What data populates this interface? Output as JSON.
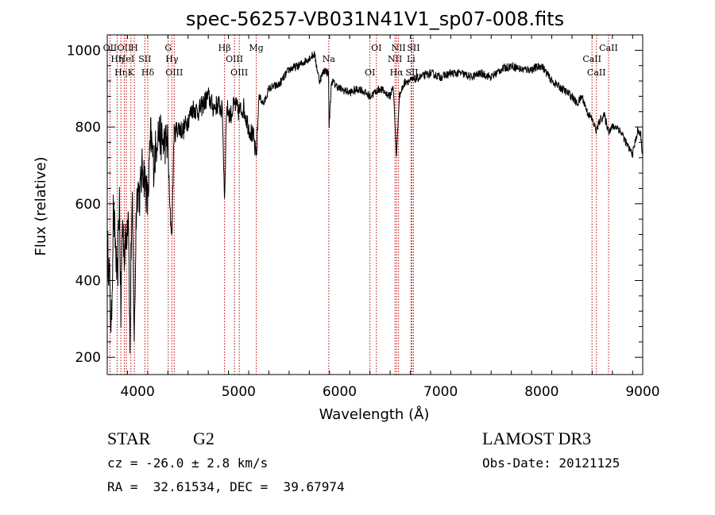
{
  "chart_data": {
    "type": "line",
    "title": "spec-56257-VB031N41V1_sp07-008.fits",
    "xlabel": "Wavelength (Å)",
    "ylabel": "Flux (relative)",
    "xlim": [
      3700,
      9000
    ],
    "ylim": [
      155,
      1040
    ],
    "xticks": [
      4000,
      5000,
      6000,
      7000,
      8000,
      9000
    ],
    "xtick_labels": [
      "4000",
      "5000",
      "6000",
      "7000",
      "8000",
      "9000"
    ],
    "yticks": [
      200,
      400,
      600,
      800,
      1000
    ],
    "ytick_labels": [
      "200",
      "400",
      "600",
      "800",
      "1000"
    ],
    "grid": false,
    "series": [
      {
        "color": "#000000",
        "x": [
          3700,
          3720,
          3740,
          3760,
          3780,
          3800,
          3820,
          3835,
          3850,
          3870,
          3890,
          3910,
          3925,
          3935,
          3950,
          3968,
          3985,
          4000,
          4020,
          4050,
          4080,
          4101,
          4130,
          4160,
          4200,
          4250,
          4300,
          4320,
          4340,
          4360,
          4400,
          4450,
          4500,
          4550,
          4600,
          4650,
          4700,
          4750,
          4800,
          4840,
          4861,
          4880,
          4920,
          4960,
          5000,
          5050,
          5100,
          5150,
          5172,
          5183,
          5200,
          5250,
          5300,
          5400,
          5500,
          5600,
          5700,
          5750,
          5800,
          5850,
          5890,
          5896,
          5920,
          6000,
          6100,
          6200,
          6300,
          6400,
          6500,
          6530,
          6563,
          6590,
          6620,
          6650,
          6700,
          6800,
          6900,
          7000,
          7100,
          7200,
          7300,
          7400,
          7500,
          7600,
          7700,
          7800,
          7900,
          8000,
          8100,
          8200,
          8300,
          8350,
          8400,
          8450,
          8498,
          8542,
          8580,
          8620,
          8662,
          8700,
          8750,
          8800,
          8850,
          8900,
          8950,
          8980,
          9000
        ],
        "y": [
          500,
          420,
          260,
          580,
          500,
          380,
          620,
          300,
          560,
          470,
          520,
          600,
          200,
          480,
          580,
          230,
          560,
          650,
          620,
          700,
          650,
          600,
          780,
          700,
          790,
          760,
          760,
          580,
          520,
          780,
          800,
          790,
          820,
          850,
          840,
          860,
          880,
          850,
          860,
          840,
          610,
          850,
          830,
          860,
          840,
          850,
          800,
          770,
          720,
          760,
          880,
          860,
          900,
          910,
          950,
          960,
          980,
          990,
          920,
          950,
          940,
          800,
          920,
          900,
          890,
          900,
          880,
          900,
          880,
          910,
          720,
          880,
          900,
          920,
          920,
          930,
          940,
          930,
          940,
          940,
          930,
          940,
          930,
          950,
          960,
          950,
          950,
          960,
          920,
          900,
          880,
          860,
          880,
          840,
          820,
          790,
          820,
          830,
          790,
          800,
          800,
          780,
          750,
          730,
          790,
          780,
          720
        ]
      }
    ],
    "lines": [
      {
        "wavelength": 3727,
        "label": "OII"
      },
      {
        "wavelength": 3798,
        "label": "Hη"
      },
      {
        "wavelength": 3835,
        "label": "Hη"
      },
      {
        "wavelength": 3869,
        "label": "OII"
      },
      {
        "wavelength": 3889,
        "label": "HeI"
      },
      {
        "wavelength": 3934,
        "label": "K"
      },
      {
        "wavelength": 3968,
        "label": "H"
      },
      {
        "wavelength": 4072,
        "label": "SII"
      },
      {
        "wavelength": 4101,
        "label": "Hδ"
      },
      {
        "wavelength": 4304,
        "label": "G"
      },
      {
        "wavelength": 4340,
        "label": "Hγ"
      },
      {
        "wavelength": 4363,
        "label": "OIII"
      },
      {
        "wavelength": 4861,
        "label": "Hβ"
      },
      {
        "wavelength": 4959,
        "label": "OIII"
      },
      {
        "wavelength": 5007,
        "label": "OIII"
      },
      {
        "wavelength": 5175,
        "label": "Mg"
      },
      {
        "wavelength": 5893,
        "label": "Na"
      },
      {
        "wavelength": 6300,
        "label": "OI"
      },
      {
        "wavelength": 6364,
        "label": "OI"
      },
      {
        "wavelength": 6548,
        "label": "NII"
      },
      {
        "wavelength": 6563,
        "label": "Hα"
      },
      {
        "wavelength": 6583,
        "label": "NII"
      },
      {
        "wavelength": 6707,
        "label": "Li"
      },
      {
        "wavelength": 6716,
        "label": "SII"
      },
      {
        "wavelength": 6731,
        "label": "SII"
      },
      {
        "wavelength": 8498,
        "label": "CaII"
      },
      {
        "wavelength": 8542,
        "label": "CaII"
      },
      {
        "wavelength": 8662,
        "label": "CaII"
      }
    ]
  },
  "info": {
    "object_type": "STAR",
    "subclass": "G2",
    "survey": "LAMOST DR3",
    "redshift": "cz = -26.0 ± 2.8 km/s",
    "obs_date": "Obs-Date: 20121125",
    "coords": "RA =  32.61534, DEC =  39.67974"
  }
}
